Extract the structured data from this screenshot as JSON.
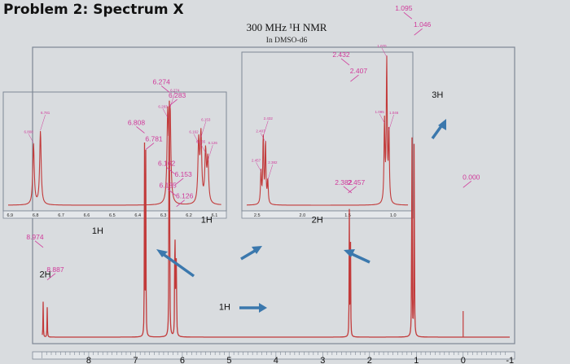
{
  "page": {
    "title": "Problem 2: Spectrum X"
  },
  "chart_data": {
    "type": "line",
    "title": "300 MHz ¹H NMR",
    "subtitle": "In DMSO-d6",
    "axis": {
      "ticks": [
        "8",
        "7",
        "6",
        "5",
        "4",
        "3",
        "2",
        "1",
        "0",
        "-1"
      ],
      "xlim": [
        9.2,
        -1.1
      ],
      "reversed": true
    },
    "colors": {
      "trace": "#c23a3a",
      "labels": "#d0399a",
      "arrows": "#3b78ad",
      "frame": "#7d8794"
    },
    "peaks": [
      {
        "ppm": 8.974,
        "height": 0.13
      },
      {
        "ppm": 8.887,
        "height": 0.11
      },
      {
        "ppm": 6.808,
        "height": 0.7
      },
      {
        "ppm": 6.781,
        "height": 0.68
      },
      {
        "ppm": 6.283,
        "height": 0.8
      },
      {
        "ppm": 6.274,
        "height": 0.84
      },
      {
        "ppm": 6.162,
        "height": 0.26
      },
      {
        "ppm": 6.153,
        "height": 0.32
      },
      {
        "ppm": 6.135,
        "height": 0.3
      },
      {
        "ppm": 6.126,
        "height": 0.24
      },
      {
        "ppm": 2.432,
        "height": 0.46
      },
      {
        "ppm": 2.407,
        "height": 0.36
      },
      {
        "ppm": 1.095,
        "height": 1.0
      },
      {
        "ppm": 1.046,
        "height": 0.96
      }
    ],
    "peak_labels": [
      {
        "text": "8.974",
        "ppm": 8.974,
        "level": 0.36
      },
      {
        "text": "8.887",
        "ppm": 8.887,
        "level": 0.24
      },
      {
        "text": "6.808",
        "ppm": 6.808,
        "level": 0.78
      },
      {
        "text": "6.781",
        "ppm": 6.781,
        "level": 0.72
      },
      {
        "text": "6.274",
        "ppm": 6.274,
        "level": 0.93
      },
      {
        "text": "6.283",
        "ppm": 6.283,
        "level": 0.88
      },
      {
        "text": "6.162",
        "ppm": 6.162,
        "level": 0.63
      },
      {
        "text": "6.153",
        "ppm": 6.153,
        "level": 0.59
      },
      {
        "text": "6.135",
        "ppm": 6.135,
        "level": 0.55
      },
      {
        "text": "6.126",
        "ppm": 6.126,
        "level": 0.51
      },
      {
        "text": "2.432",
        "ppm": 2.432,
        "level": 1.03
      },
      {
        "text": "2.407",
        "ppm": 2.407,
        "level": 0.97
      },
      {
        "text": "2.382",
        "ppm": 2.382,
        "level": 0.56
      },
      {
        "text": "2.457",
        "ppm": 2.457,
        "level": 0.56
      },
      {
        "text": "1.095",
        "ppm": 1.095,
        "level": 1.2
      },
      {
        "text": "1.046",
        "ppm": 1.046,
        "level": 1.14
      },
      {
        "text": "1.070",
        "ppm": 1.07,
        "level": 2.17
      },
      {
        "text": "0.000",
        "ppm": 0.0,
        "level": 0.58
      }
    ],
    "integrations": [
      {
        "text": "2H",
        "ppm": 8.93
      },
      {
        "text": "1H",
        "ppm": 6.8
      },
      {
        "text": "1H",
        "ppm": 6.28
      },
      {
        "text": "1H",
        "ppm": 6.14
      },
      {
        "text": "2H",
        "ppm": 2.42
      },
      {
        "text": "3H",
        "ppm": 1.07
      }
    ],
    "expansions": {
      "aromatic": {
        "ticks": [
          "6.9",
          "6.8",
          "6.7",
          "6.6",
          "6.5",
          "6.4",
          "6.3",
          "6.2",
          "6.1"
        ],
        "xlim": [
          6.92,
          6.06
        ],
        "peaks": [
          {
            "ppm": 6.808,
            "height": 0.62,
            "label": "6.808"
          },
          {
            "ppm": 6.781,
            "height": 0.75,
            "label": "6.781"
          },
          {
            "ppm": 6.283,
            "height": 0.88,
            "label": "6.283"
          },
          {
            "ppm": 6.274,
            "height": 0.98,
            "label": "6.274"
          },
          {
            "ppm": 6.162,
            "height": 0.62,
            "label": "6.162"
          },
          {
            "ppm": 6.153,
            "height": 0.68,
            "label": "6.153"
          },
          {
            "ppm": 6.135,
            "height": 0.52,
            "label": "6.135"
          },
          {
            "ppm": 6.126,
            "height": 0.44,
            "label": "6.126"
          }
        ]
      },
      "aliphatic": {
        "ticks": [
          "2.5",
          "2.0",
          "1.5",
          "1.0"
        ],
        "xlim": [
          2.65,
          0.8
        ],
        "peaks": [
          {
            "ppm": 2.457,
            "height": 0.22,
            "label": "2.457"
          },
          {
            "ppm": 2.432,
            "height": 0.46,
            "label": "2.432"
          },
          {
            "ppm": 2.407,
            "height": 0.42,
            "label": "2.407"
          },
          {
            "ppm": 2.382,
            "height": 0.16,
            "label": "2.382"
          },
          {
            "ppm": 1.095,
            "height": 0.55,
            "label": "1.095"
          },
          {
            "ppm": 1.046,
            "height": 0.5,
            "label": "1.046"
          },
          {
            "ppm": 1.07,
            "height": 1.0,
            "label": "1.070"
          }
        ]
      }
    }
  }
}
